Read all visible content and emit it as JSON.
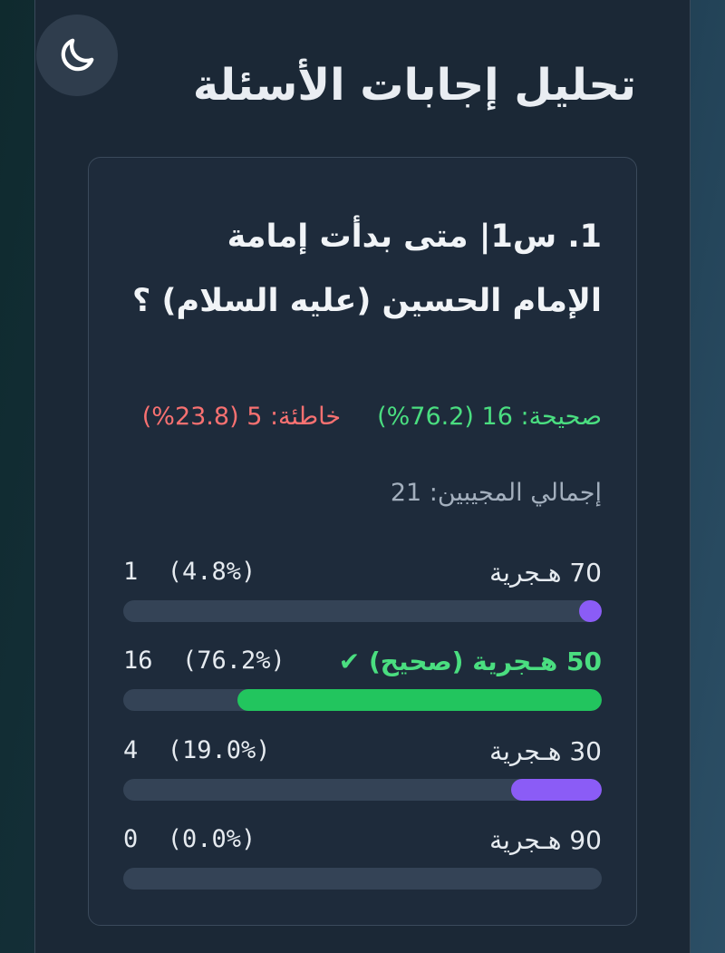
{
  "theme_icon": "moon-icon",
  "page_title": "تحليل إجابات الأسئلة",
  "question": {
    "text": "1. س1| متى بدأت إمامة الإمام الحسين (عليه السلام) ؟",
    "correct_text": "صحيحة: 16 (76.2%)",
    "wrong_text": "خاطئة: 5 (23.8%)",
    "total_text": "إجمالي المجيبين: 21",
    "options": [
      {
        "label": "70 هـجرية",
        "count": "1  (4.8%)",
        "percent": 4.8,
        "correct": false
      },
      {
        "label": "50 هـجرية (صحيح) ✔",
        "count": "16  (76.2%)",
        "percent": 76.2,
        "correct": true
      },
      {
        "label": "30 هـجرية",
        "count": "4  (19.0%)",
        "percent": 19.0,
        "correct": false
      },
      {
        "label": "90 هـجرية",
        "count": "0  (0.0%)",
        "percent": 0.0,
        "correct": false
      }
    ]
  },
  "colors": {
    "correct": "#22c55e",
    "wrong": "#f87171",
    "bar_default": "#8b5cf6",
    "track": "#344356"
  }
}
